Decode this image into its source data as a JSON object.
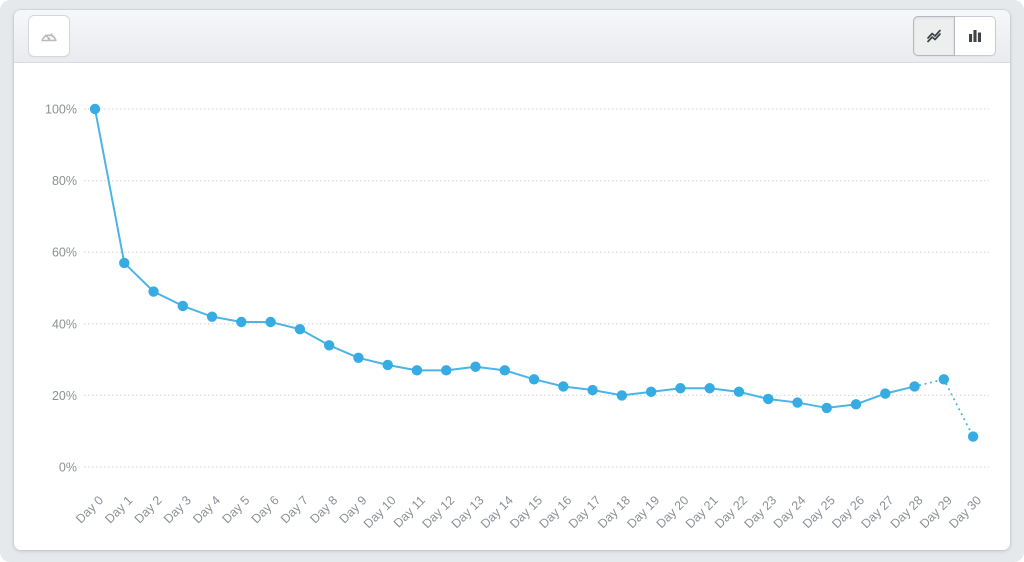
{
  "toolbar": {
    "dashboard_button": {
      "icon": "gauge-icon"
    },
    "chart_type_toggle": {
      "line_button": {
        "icon": "line-chart-icon",
        "active": true
      },
      "bar_button": {
        "icon": "bar-chart-icon",
        "active": false
      }
    }
  },
  "chart_data": {
    "type": "line",
    "title": "",
    "xlabel": "",
    "ylabel": "",
    "categories": [
      "Day 0",
      "Day 1",
      "Day 2",
      "Day 3",
      "Day 4",
      "Day 5",
      "Day 6",
      "Day 7",
      "Day 8",
      "Day 9",
      "Day 10",
      "Day 11",
      "Day 12",
      "Day 13",
      "Day 14",
      "Day 15",
      "Day 16",
      "Day 17",
      "Day 18",
      "Day 19",
      "Day 20",
      "Day 21",
      "Day 22",
      "Day 23",
      "Day 24",
      "Day 25",
      "Day 26",
      "Day 27",
      "Day 28",
      "Day 29",
      "Day 30"
    ],
    "values": [
      100,
      57,
      49,
      45,
      42,
      40.5,
      40.5,
      38.5,
      34,
      30.5,
      28.5,
      27,
      27,
      28,
      27,
      24.5,
      22.5,
      21.5,
      20,
      21,
      22,
      22,
      21,
      19,
      18,
      16.5,
      17.5,
      20.5,
      22.5,
      24.5,
      8.5
    ],
    "ylim": [
      0,
      100
    ],
    "y_ticks": [
      0,
      20,
      40,
      60,
      80,
      100
    ],
    "y_tick_labels": [
      "0%",
      "20%",
      "40%",
      "60%",
      "80%",
      "100%"
    ],
    "grid": true,
    "legend": "none",
    "dotted_tail_segments": 2,
    "colors": {
      "point": "#36ace2",
      "line": "#4cb4e7",
      "grid": "#d9dcdf",
      "axis_label": "#8b9096",
      "toolbar_icon_dark": "#3e4349",
      "toolbar_icon_muted": "#b7bcc3"
    }
  }
}
